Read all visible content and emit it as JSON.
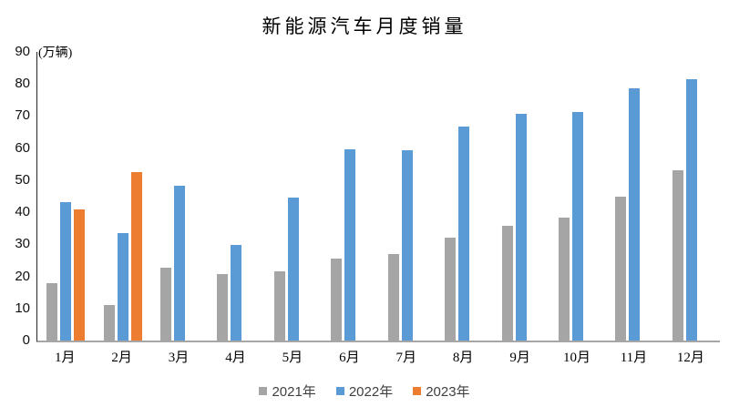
{
  "chart_data": {
    "type": "bar",
    "title": "新能源汽车月度销量",
    "unit_label": "(万辆)",
    "categories": [
      "1月",
      "2月",
      "3月",
      "4月",
      "5月",
      "6月",
      "7月",
      "8月",
      "9月",
      "10月",
      "11月",
      "12月"
    ],
    "series": [
      {
        "name": "2021年",
        "color": "#A5A5A5",
        "values": [
          17.9,
          11.0,
          22.6,
          20.6,
          21.7,
          25.6,
          27.1,
          32.1,
          35.7,
          38.3,
          45.0,
          53.1
        ]
      },
      {
        "name": "2022年",
        "color": "#5B9BD5",
        "values": [
          43.1,
          33.4,
          48.4,
          29.9,
          44.7,
          59.6,
          59.3,
          66.6,
          70.8,
          71.4,
          78.6,
          81.4
        ]
      },
      {
        "name": "2023年",
        "color": "#ED7D31",
        "values": [
          40.8,
          52.5,
          null,
          null,
          null,
          null,
          null,
          null,
          null,
          null,
          null,
          null
        ]
      }
    ],
    "ylim": [
      0,
      90
    ],
    "yticks": [
      0,
      10,
      20,
      30,
      40,
      50,
      60,
      70,
      80,
      90
    ],
    "xlabel": "",
    "ylabel": "",
    "grid": false,
    "legend_position": "bottom",
    "axis_colors": {
      "y_axis_line": "#262626",
      "x_axis_line": "#a6a6a6"
    }
  }
}
